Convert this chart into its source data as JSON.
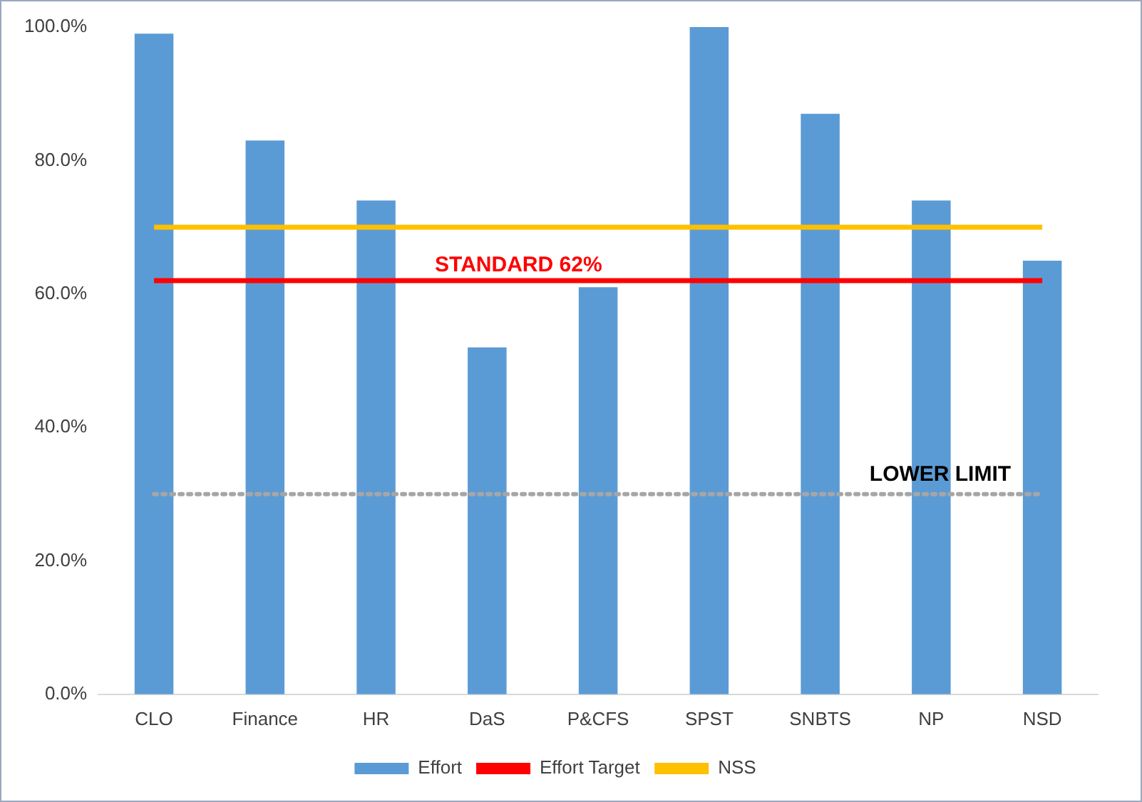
{
  "chart_data": {
    "type": "bar",
    "categories": [
      "CLO",
      "Finance",
      "HR",
      "DaS",
      "P&CFS",
      "SPST",
      "SNBTS",
      "NP",
      "NSD"
    ],
    "series": [
      {
        "name": "Effort",
        "color": "#5b9bd5",
        "values": [
          99,
          83,
          74,
          52,
          61,
          100,
          87,
          74,
          65
        ]
      },
      {
        "name": "Effort Target",
        "type": "line",
        "color": "#ff0000",
        "values": [
          62,
          62,
          62,
          62,
          62,
          62,
          62,
          62,
          62
        ]
      },
      {
        "name": "NSS",
        "type": "line",
        "color": "#ffc000",
        "values": [
          70,
          70,
          70,
          70,
          70,
          70,
          70,
          70,
          70
        ]
      }
    ],
    "ylim": [
      0,
      100
    ],
    "yticks": [
      {
        "value": 0,
        "label": "0.0%"
      },
      {
        "value": 20,
        "label": "20.0%"
      },
      {
        "value": 40,
        "label": "40.0%"
      },
      {
        "value": 60,
        "label": "60.0%"
      },
      {
        "value": 80,
        "label": "80.0%"
      },
      {
        "value": 100,
        "label": "100.0%"
      }
    ],
    "ref_lines": [
      {
        "axis": "y",
        "value": 30,
        "label": "LOWER LIMIT",
        "color": "#a6a6a6",
        "line_style": "dotted"
      }
    ],
    "annotations": [
      {
        "text": "STANDARD 62%",
        "x": "DaS",
        "y": 62
      }
    ],
    "grid": false,
    "legend": "bottom",
    "marker": "none"
  }
}
